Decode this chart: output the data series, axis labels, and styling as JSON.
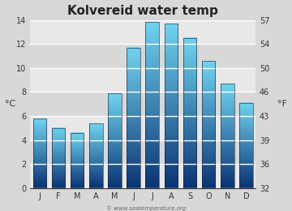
{
  "title": "Kolvereid water temp",
  "months": [
    "J",
    "F",
    "M",
    "A",
    "M",
    "J",
    "J",
    "A",
    "S",
    "O",
    "N",
    "D"
  ],
  "values_c": [
    5.8,
    5.0,
    4.6,
    5.4,
    7.9,
    11.7,
    13.8,
    13.7,
    12.5,
    10.6,
    8.7,
    7.1
  ],
  "ylabel_left": "°C",
  "ylabel_right": "°F",
  "ylim_c": [
    0,
    14
  ],
  "yticks_c": [
    0,
    2,
    4,
    6,
    8,
    10,
    12,
    14
  ],
  "yticks_f": [
    32,
    36,
    39,
    43,
    46,
    50,
    54,
    57
  ],
  "bar_color_top": "#72d4f0",
  "bar_color_bottom": "#0a3a6e",
  "bg_color": "#d8d8d8",
  "plot_bg_color_dark": "#c8c8c8",
  "plot_bg_color_light": "#e8e8e8",
  "grid_color": "#ffffff",
  "watermark": "© www.seatemperature.org",
  "title_fontsize": 11,
  "axis_fontsize": 7,
  "label_fontsize": 8
}
